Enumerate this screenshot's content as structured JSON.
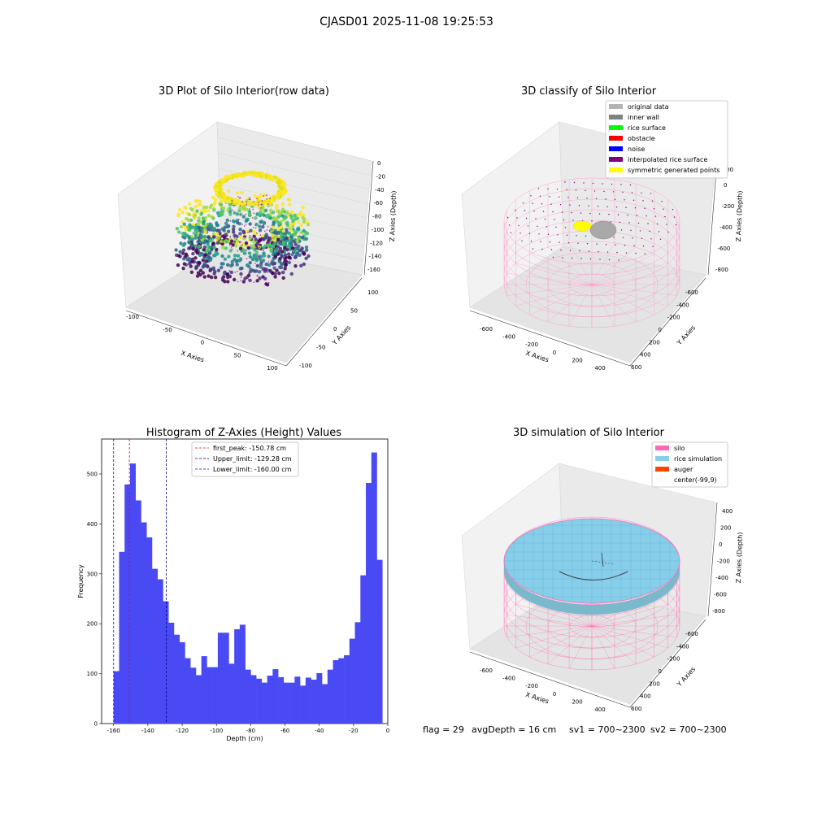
{
  "suptitle": "CJASD01 2025-11-08 19:25:53",
  "footer": {
    "flag": "flag = 29",
    "avg_depth": "avgDepth = 16 cm",
    "sv1": "sv1 = 700~2300",
    "sv2": "sv2 = 700~2300"
  },
  "chart_data": [
    {
      "id": "raw",
      "type": "scatter",
      "title": "3D Plot of Silo Interior(row data)",
      "xlabel": "X Axies",
      "ylabel": "Y Axies",
      "zlabel": "Z Axies (Depth)",
      "x_ticks": [
        "-100",
        "-50",
        "0",
        "50",
        "100"
      ],
      "y_ticks": [
        "-100",
        "-50",
        "0",
        "50",
        "100"
      ],
      "z_ticks": [
        "0",
        "-20",
        "-40",
        "-60",
        "-80",
        "-100",
        "-120",
        "-140",
        "-160"
      ],
      "xlim": [
        -120,
        120
      ],
      "ylim": [
        -110,
        110
      ],
      "zlim": [
        -165,
        0
      ],
      "colormap": "viridis"
    },
    {
      "id": "classify",
      "type": "scatter",
      "title": "3D classify of Silo Interior",
      "xlabel": "X Axies",
      "ylabel": "Y Axies",
      "zlabel": "Z Axies (Depth)",
      "x_ticks": [
        "-600",
        "-400",
        "-200",
        "0",
        "200",
        "400"
      ],
      "y_ticks": [
        "-600",
        "-400",
        "-200",
        "0",
        "200",
        "400",
        "600"
      ],
      "z_ticks": [
        "200",
        "0",
        "-200",
        "-400",
        "-600",
        "-800"
      ],
      "z_ticks_partial": [
        "00"
      ],
      "legend_position": "upper right",
      "legend": [
        {
          "label": "original data",
          "color": "#b3b3b3"
        },
        {
          "label": "inner wall",
          "color": "#808080"
        },
        {
          "label": "rice surface",
          "color": "#00ff00"
        },
        {
          "label": "obstacle",
          "color": "#ff0000"
        },
        {
          "label": "noise",
          "color": "#0000ff"
        },
        {
          "label": "interpolated rice surface",
          "color": "#800080"
        },
        {
          "label": "symmetric generated points",
          "color": "#ffff00"
        }
      ]
    },
    {
      "id": "hist",
      "type": "bar",
      "title": "Histogram of Z-Axies (Height) Values",
      "xlabel": "Depth (cm)",
      "ylabel": "Frequency",
      "xlim": [
        -167,
        0
      ],
      "ylim": [
        0,
        570
      ],
      "x_ticks": [
        -160,
        -140,
        -120,
        -100,
        -80,
        -60,
        -40,
        -20,
        0
      ],
      "y_ticks": [
        0,
        100,
        200,
        300,
        400,
        500
      ],
      "bar_color": "#4a4af4",
      "bin_start": -160,
      "bin_width": 3.2,
      "values": [
        105,
        344,
        479,
        521,
        447,
        403,
        373,
        310,
        289,
        245,
        202,
        178,
        163,
        131,
        112,
        97,
        135,
        113,
        113,
        182,
        182,
        120,
        189,
        198,
        108,
        97,
        90,
        82,
        96,
        109,
        93,
        82,
        82,
        94,
        76,
        92,
        88,
        101,
        79,
        108,
        127,
        131,
        137,
        170,
        203,
        297,
        482,
        543,
        328
      ],
      "vlines": [
        {
          "label": "first_peak: -150.78 cm",
          "x": -150.78,
          "color": "#ff0000"
        },
        {
          "label": "Upper_limit: -129.28 cm",
          "x": -129.28,
          "color": "#00008b"
        },
        {
          "label": "Lower_limit: -160.00 cm",
          "x": -160.0,
          "color": "#0000ff"
        }
      ],
      "legend_position": "upper center"
    },
    {
      "id": "sim",
      "type": "scatter",
      "title": "3D simulation of Silo Interior",
      "xlabel": "X Axies",
      "ylabel": "Y Axies",
      "zlabel": "Z Axies (Depth)",
      "x_ticks": [
        "-600",
        "-400",
        "-200",
        "0",
        "200",
        "400"
      ],
      "y_ticks": [
        "-600",
        "-400",
        "-200",
        "0",
        "200",
        "400",
        "600"
      ],
      "z_ticks": [
        "400",
        "200",
        "0",
        "-200",
        "-400",
        "-600",
        "-800"
      ],
      "legend_position": "upper right",
      "legend": [
        {
          "label": "silo",
          "color": "#ff69b4"
        },
        {
          "label": "rice simulation",
          "color": "#87ceeb"
        },
        {
          "label": "auger",
          "color": "#ff4500"
        },
        {
          "label": "center(-99,9)",
          "color": "none"
        }
      ]
    }
  ]
}
